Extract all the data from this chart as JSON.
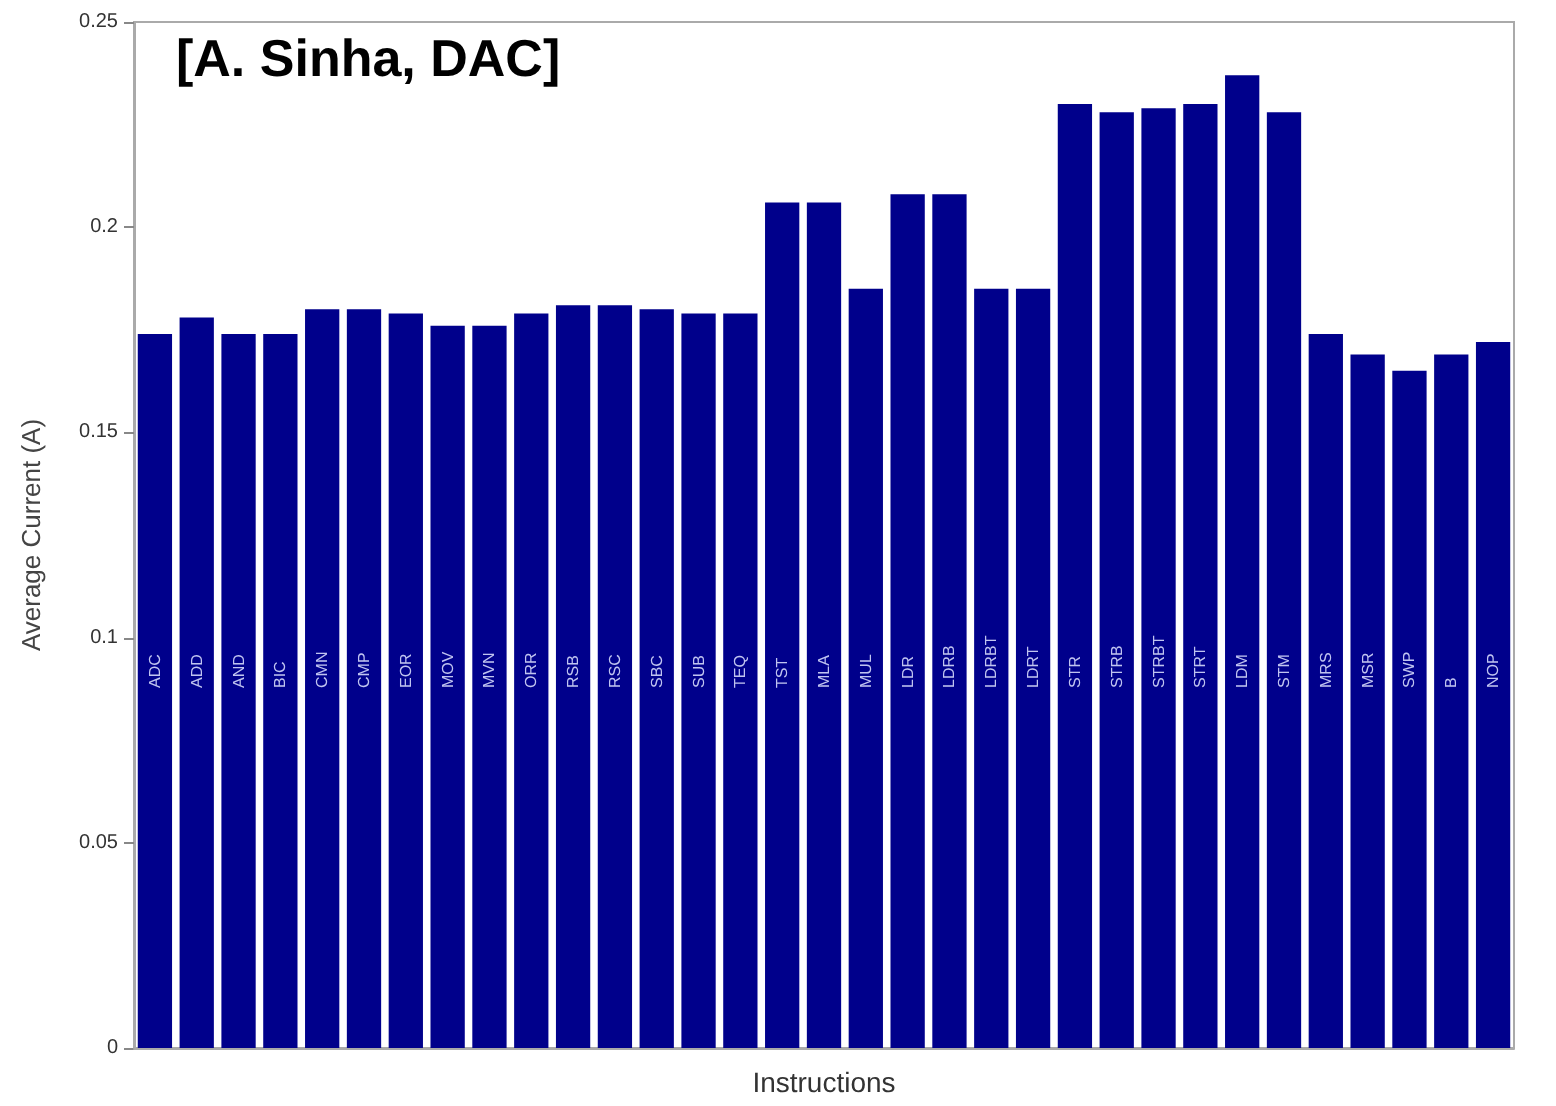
{
  "chart_data": {
    "type": "bar",
    "xlabel": "Instructions",
    "ylabel": "Average Current (A)",
    "annotations": [
      "[A. Sinha, DAC]"
    ],
    "categories": [
      "ADC",
      "ADD",
      "AND",
      "BIC",
      "CMN",
      "CMP",
      "EOR",
      "MOV",
      "MVN",
      "ORR",
      "RSB",
      "RSC",
      "SBC",
      "SUB",
      "TEQ",
      "TST",
      "MLA",
      "MUL",
      "LDR",
      "LDRB",
      "LDRBT",
      "LDRT",
      "STR",
      "STRB",
      "STRBT",
      "STRT",
      "LDM",
      "STM",
      "MRS",
      "MSR",
      "SWP",
      "B",
      "NOP"
    ],
    "values": [
      0.174,
      0.178,
      0.174,
      0.174,
      0.18,
      0.18,
      0.179,
      0.176,
      0.176,
      0.179,
      0.181,
      0.181,
      0.18,
      0.179,
      0.179,
      0.206,
      0.206,
      0.185,
      0.208,
      0.208,
      0.185,
      0.185,
      0.23,
      0.228,
      0.229,
      0.23,
      0.237,
      0.228,
      0.174,
      0.169,
      0.165,
      0.169,
      0.172
    ],
    "color": "#00008b",
    "ylim": [
      0,
      0.25
    ],
    "yticks": [
      0,
      0.05,
      0.1,
      0.15,
      0.2,
      0.25
    ],
    "grid": false
  }
}
